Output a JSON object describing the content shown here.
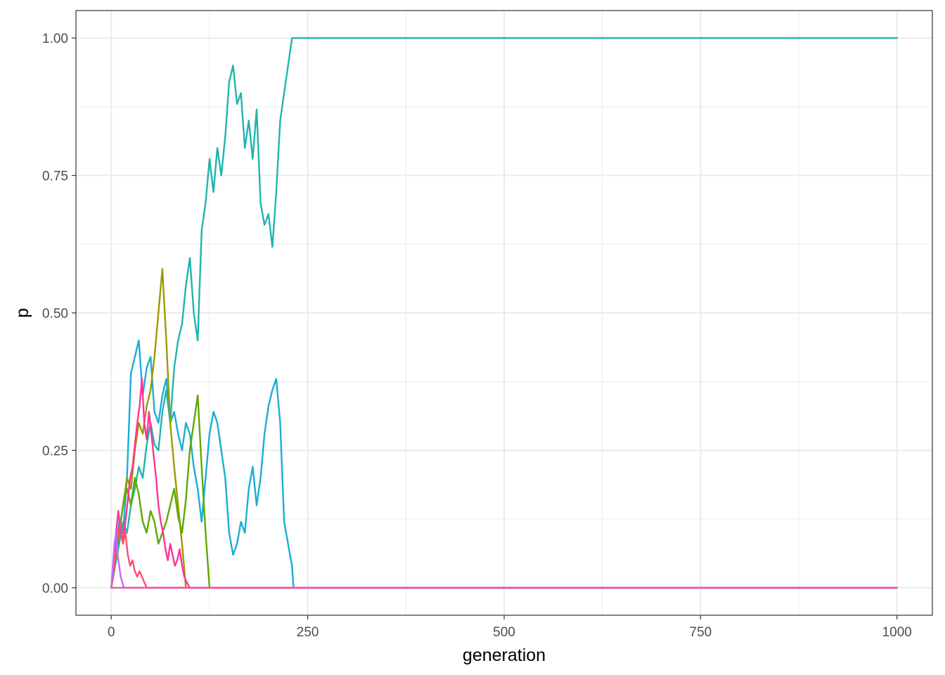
{
  "chart_data": {
    "type": "line",
    "xlabel": "generation",
    "ylabel": "p",
    "xlim": [
      -45,
      1045
    ],
    "ylim": [
      -0.05,
      1.05
    ],
    "x_ticks": [
      0,
      250,
      500,
      750,
      1000
    ],
    "x_tick_labels": [
      "0",
      "250",
      "500",
      "750",
      "1000"
    ],
    "y_ticks": [
      0,
      0.25,
      0.5,
      0.75,
      1
    ],
    "y_tick_labels": [
      "0.00",
      "0.25",
      "0.50",
      "0.75",
      "1.00"
    ],
    "grid": true,
    "legend": "none",
    "series": [
      {
        "color": "#1fb5ad",
        "x": [
          0,
          5,
          10,
          15,
          20,
          25,
          30,
          35,
          40,
          45,
          50,
          55,
          60,
          65,
          70,
          75,
          80,
          85,
          90,
          95,
          100,
          105,
          110,
          115,
          120,
          125,
          130,
          135,
          140,
          145,
          150,
          155,
          160,
          165,
          170,
          175,
          180,
          185,
          190,
          195,
          200,
          205,
          210,
          215,
          220,
          225,
          230,
          232,
          1000
        ],
        "y": [
          0,
          0.04,
          0.08,
          0.12,
          0.1,
          0.15,
          0.18,
          0.22,
          0.2,
          0.26,
          0.3,
          0.26,
          0.25,
          0.32,
          0.36,
          0.3,
          0.4,
          0.45,
          0.48,
          0.55,
          0.6,
          0.5,
          0.45,
          0.65,
          0.7,
          0.78,
          0.72,
          0.8,
          0.75,
          0.82,
          0.92,
          0.95,
          0.88,
          0.9,
          0.8,
          0.85,
          0.78,
          0.87,
          0.7,
          0.66,
          0.68,
          0.62,
          0.72,
          0.85,
          0.9,
          0.95,
          1,
          1,
          1
        ]
      },
      {
        "color": "#1aadd6",
        "x": [
          0,
          5,
          10,
          15,
          20,
          25,
          30,
          35,
          40,
          45,
          50,
          55,
          60,
          65,
          70,
          75,
          80,
          85,
          90,
          95,
          100,
          105,
          110,
          115,
          120,
          125,
          130,
          135,
          140,
          145,
          150,
          155,
          160,
          165,
          170,
          175,
          180,
          185,
          190,
          195,
          200,
          205,
          210,
          215,
          220,
          225,
          230,
          232,
          1000
        ],
        "y": [
          0,
          0.06,
          0.12,
          0.1,
          0.2,
          0.39,
          0.42,
          0.45,
          0.35,
          0.4,
          0.42,
          0.32,
          0.3,
          0.35,
          0.38,
          0.3,
          0.32,
          0.28,
          0.25,
          0.3,
          0.28,
          0.22,
          0.18,
          0.12,
          0.2,
          0.28,
          0.32,
          0.3,
          0.25,
          0.2,
          0.1,
          0.06,
          0.08,
          0.12,
          0.1,
          0.18,
          0.22,
          0.15,
          0.2,
          0.28,
          0.33,
          0.36,
          0.38,
          0.3,
          0.12,
          0.08,
          0.04,
          0,
          0
        ]
      },
      {
        "color": "#9a9a00",
        "x": [
          0,
          5,
          10,
          15,
          20,
          25,
          30,
          35,
          40,
          45,
          50,
          55,
          60,
          65,
          70,
          75,
          80,
          85,
          90,
          95,
          1000
        ],
        "y": [
          0,
          0.05,
          0.1,
          0.15,
          0.2,
          0.18,
          0.25,
          0.3,
          0.28,
          0.33,
          0.36,
          0.42,
          0.5,
          0.58,
          0.45,
          0.3,
          0.22,
          0.15,
          0.08,
          0,
          0
        ]
      },
      {
        "color": "#5fa800",
        "x": [
          0,
          5,
          10,
          15,
          20,
          25,
          30,
          35,
          40,
          45,
          50,
          55,
          60,
          65,
          70,
          75,
          80,
          85,
          90,
          95,
          100,
          105,
          110,
          115,
          120,
          125,
          1000
        ],
        "y": [
          0,
          0.05,
          0.1,
          0.15,
          0.18,
          0.15,
          0.2,
          0.17,
          0.12,
          0.1,
          0.14,
          0.12,
          0.08,
          0.1,
          0.12,
          0.15,
          0.18,
          0.13,
          0.1,
          0.16,
          0.25,
          0.3,
          0.35,
          0.22,
          0.1,
          0,
          0
        ]
      },
      {
        "color": "#ff3399",
        "x": [
          0,
          3,
          6,
          9,
          12,
          15,
          18,
          21,
          24,
          27,
          30,
          33,
          36,
          39,
          42,
          45,
          48,
          51,
          54,
          57,
          60,
          63,
          66,
          69,
          72,
          75,
          78,
          81,
          84,
          87,
          90,
          93,
          96,
          100,
          1000
        ],
        "y": [
          0,
          0.05,
          0.1,
          0.14,
          0.1,
          0.08,
          0.12,
          0.16,
          0.2,
          0.22,
          0.26,
          0.3,
          0.33,
          0.38,
          0.3,
          0.27,
          0.32,
          0.28,
          0.24,
          0.2,
          0.15,
          0.12,
          0.1,
          0.07,
          0.05,
          0.08,
          0.06,
          0.04,
          0.05,
          0.07,
          0.04,
          0.02,
          0.01,
          0,
          0
        ]
      },
      {
        "color": "#ff4d6d",
        "x": [
          0,
          3,
          6,
          9,
          12,
          15,
          18,
          21,
          24,
          27,
          30,
          33,
          36,
          39,
          42,
          45,
          1000
        ],
        "y": [
          0,
          0.03,
          0.07,
          0.1,
          0.12,
          0.08,
          0.1,
          0.06,
          0.04,
          0.05,
          0.03,
          0.02,
          0.03,
          0.02,
          0.01,
          0,
          0
        ]
      },
      {
        "color": "#cc66ff",
        "x": [
          0,
          2,
          4,
          6,
          8,
          10,
          12,
          14,
          16,
          1000
        ],
        "y": [
          0,
          0.04,
          0.08,
          0.1,
          0.06,
          0.04,
          0.02,
          0.01,
          0,
          0
        ]
      },
      {
        "color": "#f0569e",
        "x": [
          0,
          1000
        ],
        "y": [
          0,
          0
        ]
      }
    ]
  }
}
